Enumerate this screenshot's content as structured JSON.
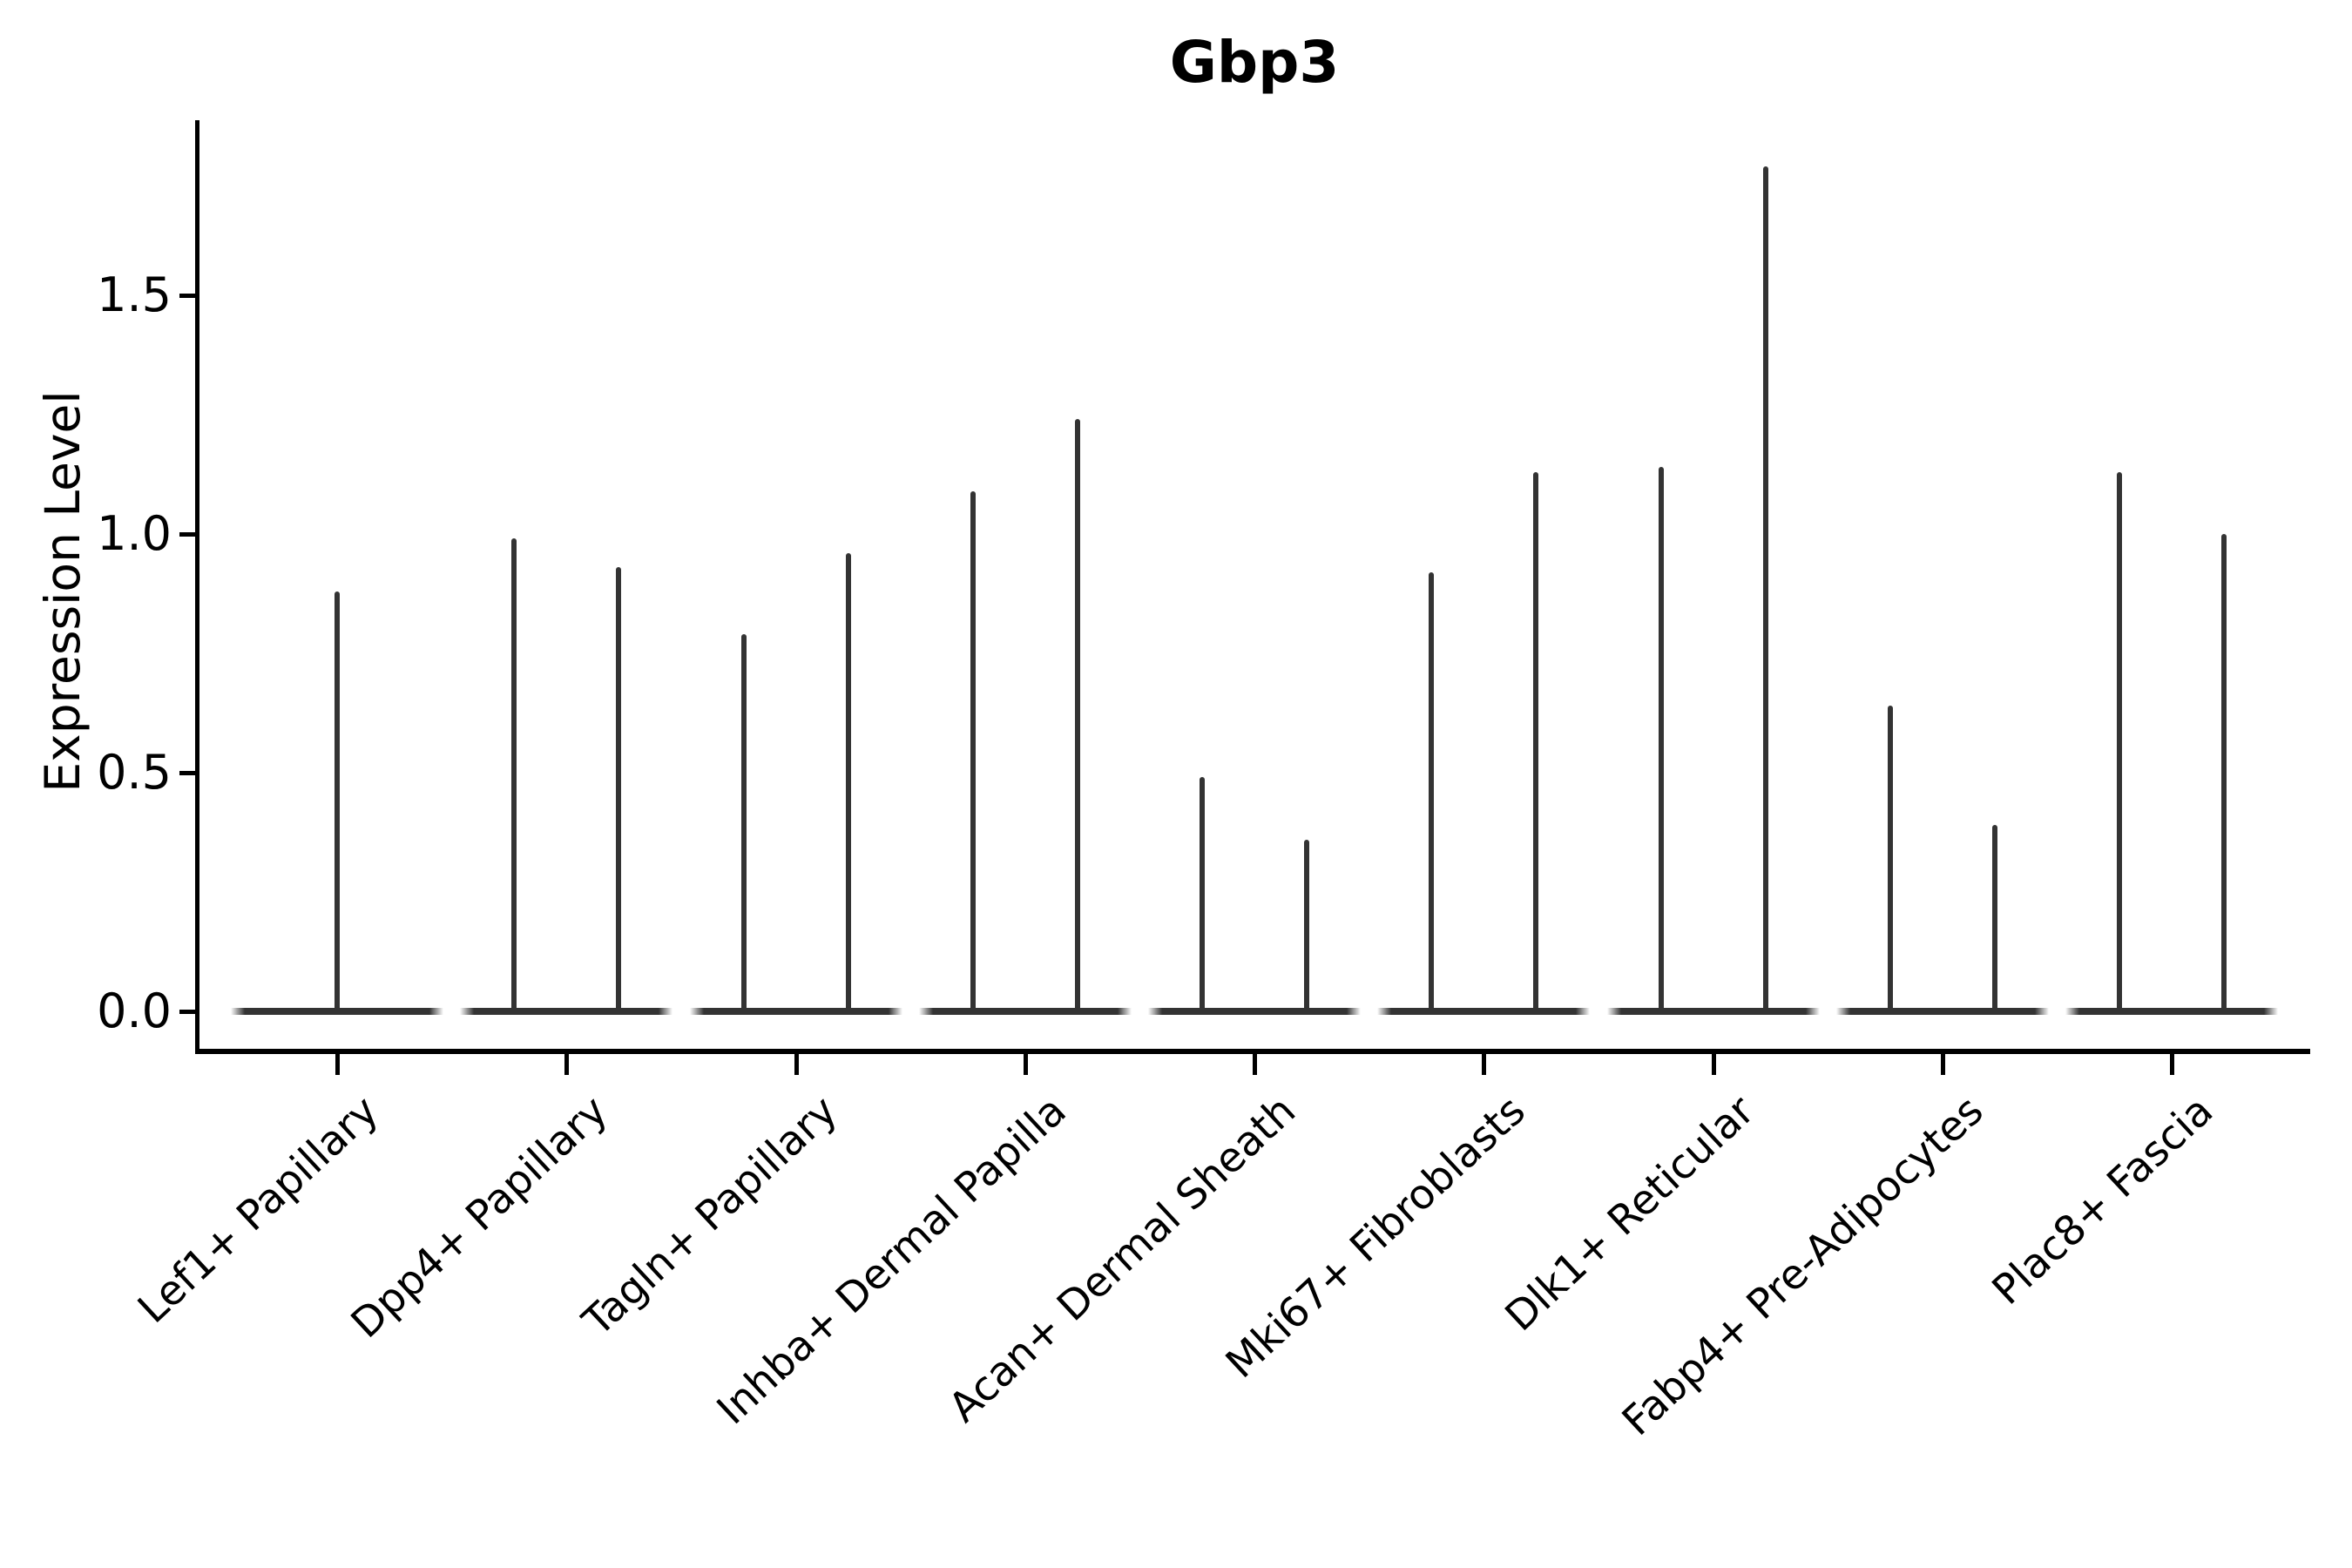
{
  "chart_data": {
    "type": "violin",
    "title": "Gbp3",
    "ylabel": "Expression Level",
    "xlabel": "",
    "ylim": [
      -0.09,
      1.87
    ],
    "grid": false,
    "legend": null,
    "violin_color": "#333333",
    "violin_style": "thin density spikes rising from a flat wide base at expression 0",
    "yticks": [
      {
        "label": "0.0",
        "value": 0.0
      },
      {
        "label": "0.5",
        "value": 0.5
      },
      {
        "label": "1.0",
        "value": 1.0
      },
      {
        "label": "1.5",
        "value": 1.5
      }
    ],
    "categories": [
      {
        "label": "Lef1+ Papillary",
        "violin_max_values": [
          0.88
        ]
      },
      {
        "label": "Dpp4+ Papillary",
        "violin_max_values": [
          0.99,
          0.93
        ]
      },
      {
        "label": "Tagln+ Papillary",
        "violin_max_values": [
          0.79,
          0.96
        ]
      },
      {
        "label": "Inhba+ Dermal Papilla",
        "violin_max_values": [
          1.09,
          1.24
        ]
      },
      {
        "label": "Acan+ Dermal Sheath",
        "violin_max_values": [
          0.49,
          0.36
        ]
      },
      {
        "label": "Mki67+ Fibroblasts",
        "violin_max_values": [
          0.92,
          1.13
        ]
      },
      {
        "label": "Dlk1+ Reticular",
        "violin_max_values": [
          1.14,
          1.77
        ]
      },
      {
        "label": "Fabp4+ Pre-Adipocytes",
        "violin_max_values": [
          0.64,
          0.39
        ]
      },
      {
        "label": "Plac8+ Fascia",
        "violin_max_values": [
          1.13,
          1.0
        ]
      }
    ]
  }
}
